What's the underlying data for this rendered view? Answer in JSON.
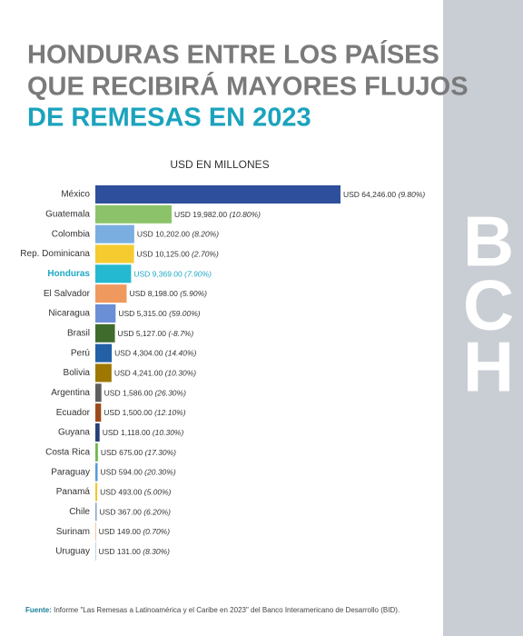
{
  "chart_data": {
    "type": "bar",
    "orientation": "horizontal",
    "title_lines": [
      "HONDURAS ENTRE LOS PAÍSES",
      "QUE RECIBIRÁ MAYORES FLUJOS",
      "DE REMESAS EN 2023"
    ],
    "subtitle": "USD EN MILLONES",
    "brand": [
      "B",
      "C",
      "H"
    ],
    "categories": [
      "México",
      "Guatemala",
      "Colombia",
      "Rep. Dominicana",
      "Honduras",
      "El Salvador",
      "Nicaragua",
      "Brasil",
      "Perú",
      "Bolivia",
      "Argentina",
      "Ecuador",
      "Guyana",
      "Costa Rica",
      "Paraguay",
      "Panamá",
      "Chile",
      "Surinam",
      "Uruguay"
    ],
    "values": [
      64246,
      19982,
      10202,
      10125,
      9369,
      8198,
      5315,
      5127,
      4304,
      4241,
      1586,
      1500,
      1118,
      675,
      594,
      493,
      367,
      149,
      131
    ],
    "value_labels": [
      "USD 64,246.00",
      "USD 19,982.00",
      "USD 10,202.00",
      "USD 10,125.00",
      "USD 9,369.00",
      "USD 8,198.00",
      "USD 5,315.00",
      "USD 5,127.00",
      "USD 4,304.00",
      "USD 4,241.00",
      "USD 1,586.00",
      "USD 1,500.00",
      "USD 1,118.00",
      "USD 675.00",
      "USD 594.00",
      "USD 493.00",
      "USD 367.00",
      "USD 149.00",
      "USD 131.00"
    ],
    "growth": [
      9.8,
      10.8,
      8.2,
      2.7,
      7.9,
      5.9,
      59,
      -8.7,
      14.4,
      10.3,
      26.3,
      12.1,
      10.3,
      17.3,
      20.3,
      5,
      6.2,
      0.7,
      8.3
    ],
    "growth_labels": [
      "(9.80%)",
      "(10.80%)",
      "(8.20%)",
      "(2.70%)",
      "(7.90%)",
      "(5.90%)",
      "(59.00%)",
      "(-8.7%)",
      "(14.40%)",
      "(10.30%)",
      "(26.30%)",
      "(12.10%)",
      "(10.30%)",
      "(17.30%)",
      "(20.30%)",
      "(5.00%)",
      "(6.20%)",
      "(0.70%)",
      "(8.30%)"
    ],
    "colors": [
      "#2e4f9b",
      "#8cc36a",
      "#7aaee0",
      "#f5cb2f",
      "#24b9d1",
      "#f0995e",
      "#6b8fd6",
      "#3f6b2d",
      "#2460a6",
      "#9e7700",
      "#5e5e5e",
      "#9c4a1a",
      "#263f7a",
      "#70b84d",
      "#5a9ad6",
      "#f2c530",
      "#8aa3c8",
      "#f3a36b",
      "#8ab0e0"
    ],
    "highlight_index": 4,
    "highlight_color": "#1ba8c4",
    "source_label": "Fuente:",
    "source_text": "Informe \"Las Remesas a Latinoamérica y el Caribe en 2023\" del Banco Interamericano de Desarrollo (BID)."
  }
}
